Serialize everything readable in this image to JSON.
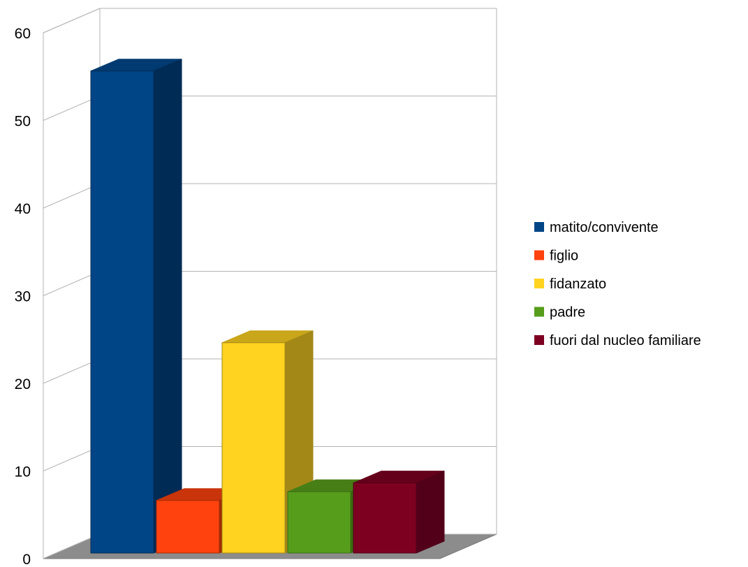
{
  "chart_data": {
    "type": "bar",
    "categories": [
      "matito/convivente",
      "figlio",
      "fidanzato",
      "padre",
      "fuori dal nucleo familiare"
    ],
    "values": [
      55,
      6,
      24,
      7,
      8
    ],
    "ylim": [
      0,
      60
    ],
    "yticks": [
      "0",
      "10",
      "20",
      "30",
      "40",
      "50",
      "60"
    ],
    "grid": true,
    "legend_position": "right",
    "colors": [
      "#004586",
      "#ff420e",
      "#ffd320",
      "#579d1c",
      "#7e0021"
    ],
    "side_colors": [
      "#002b55",
      "#a32b06",
      "#a38818",
      "#3a6b12",
      "#52001a"
    ],
    "top_colors": [
      "#003a70",
      "#c9340b",
      "#c9a61a",
      "#477f16",
      "#65001b"
    ],
    "title": "",
    "xlabel": "",
    "ylabel": ""
  }
}
